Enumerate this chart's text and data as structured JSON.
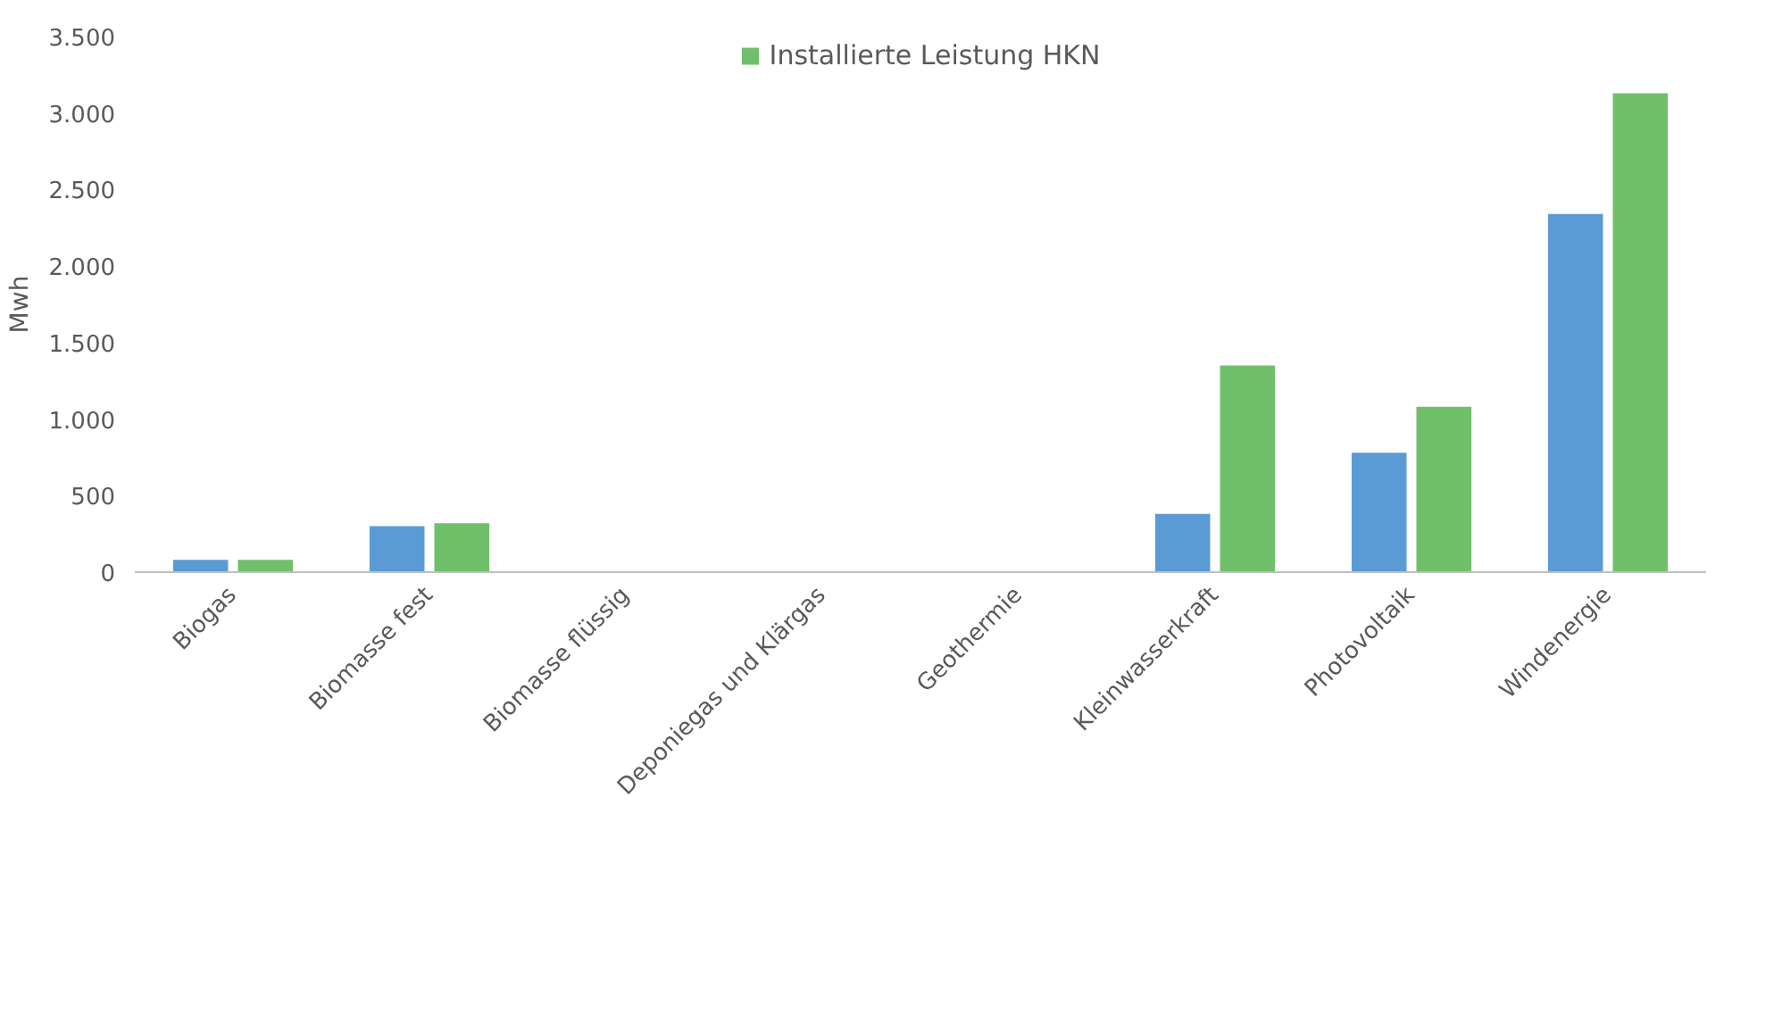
{
  "chart_data": {
    "type": "bar",
    "ylabel": "Mwh",
    "categories": [
      "Biogas",
      "Biomasse fest",
      "Biomasse flüssig",
      "Deponiegas und Klärgas",
      "Geothermie",
      "Kleinwasserkraft",
      "Photovoltaik",
      "Windenergie"
    ],
    "series": [
      {
        "color": "#5b9bd5",
        "values": [
          80,
          300,
          0,
          0,
          0,
          380,
          780,
          2340
        ]
      },
      {
        "name": "Installierte Leistung HKN",
        "color": "#70bf6a",
        "values": [
          80,
          320,
          0,
          0,
          0,
          1350,
          1080,
          3130
        ]
      }
    ],
    "ylim": [
      0,
      3500
    ],
    "yticks": [
      0,
      {
        "value": 500,
        "label": "500"
      },
      {
        "value": 1000,
        "label": "1.000"
      },
      {
        "value": 1500,
        "label": "1.500"
      },
      {
        "value": 2000,
        "label": "2.000"
      },
      {
        "value": 2500,
        "label": "2.500"
      },
      {
        "value": 3000,
        "label": "3.000"
      },
      {
        "value": 3500,
        "label": "3.500"
      }
    ],
    "grid": false,
    "legend": "top"
  }
}
